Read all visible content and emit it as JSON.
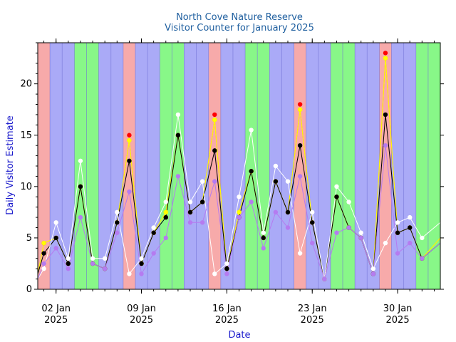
{
  "chart_data": {
    "type": "line",
    "title": "North Cove Nature Reserve",
    "subtitle": "Visitor Counter for January 2025",
    "xlabel": "Date",
    "ylabel": "Daily Visitor Estimate",
    "xlim": [
      "2024-12-31T12:00",
      "2025-02-02T12:00"
    ],
    "ylim": [
      0,
      24
    ],
    "yticks": [
      0,
      5,
      10,
      15,
      20
    ],
    "xticks": [
      {
        "date": "2025-01-02",
        "line1": "02 Jan",
        "line2": "2025"
      },
      {
        "date": "2025-01-09",
        "line1": "09 Jan",
        "line2": "2025"
      },
      {
        "date": "2025-01-16",
        "line1": "16 Jan",
        "line2": "2025"
      },
      {
        "date": "2025-01-23",
        "line1": "23 Jan",
        "line2": "2025"
      },
      {
        "date": "2025-01-30",
        "line1": "30 Jan",
        "line2": "2025"
      }
    ],
    "background_bands": [
      "red",
      "blue",
      "blue",
      "green",
      "green",
      "blue",
      "blue",
      "red",
      "blue",
      "blue",
      "green",
      "green",
      "blue",
      "blue",
      "red",
      "blue",
      "blue",
      "green",
      "green",
      "blue",
      "blue",
      "red",
      "blue",
      "blue",
      "green",
      "green",
      "blue",
      "blue",
      "red",
      "blue",
      "blue",
      "green",
      "green"
    ],
    "band_colors": {
      "red": "#f7aaaa",
      "blue": "#aaaaf7",
      "green": "#88f788"
    },
    "x": [
      "2024-12-31T12:00",
      "2025-01-01",
      "2025-01-02",
      "2025-01-03",
      "2025-01-04",
      "2025-01-05",
      "2025-01-06",
      "2025-01-07",
      "2025-01-08",
      "2025-01-09",
      "2025-01-10",
      "2025-01-11",
      "2025-01-12",
      "2025-01-13",
      "2025-01-14",
      "2025-01-15",
      "2025-01-16",
      "2025-01-17",
      "2025-01-18",
      "2025-01-19",
      "2025-01-20",
      "2025-01-21",
      "2025-01-22",
      "2025-01-23",
      "2025-01-24",
      "2025-01-25",
      "2025-01-26",
      "2025-01-27",
      "2025-01-28",
      "2025-01-29",
      "2025-01-30",
      "2025-01-31",
      "2025-02-01",
      "2025-02-02T12:00"
    ],
    "series": [
      {
        "color": "#ff0000",
        "line": false,
        "values": [
          null,
          4.5,
          5,
          2.5,
          10,
          2.5,
          2,
          6.5,
          15,
          2.5,
          5.5,
          7,
          15,
          7.5,
          8.5,
          17,
          2,
          7,
          11.5,
          5,
          10.5,
          7.5,
          18,
          6.5,
          1,
          9,
          6,
          5,
          1.5,
          23,
          5.5,
          6,
          3,
          null
        ]
      },
      {
        "color": "#ffa500",
        "line": true,
        "values": [
          1.5,
          4.5,
          5,
          2.5,
          10,
          2.5,
          2,
          6.5,
          14.5,
          2.5,
          5.5,
          7.5,
          15,
          7.5,
          8.5,
          16.5,
          2,
          7.5,
          11.5,
          5,
          10.5,
          7.5,
          17.5,
          6.5,
          1,
          9,
          6,
          5,
          1.5,
          22.5,
          5.5,
          6,
          3,
          5
        ]
      },
      {
        "color": "#ffff00",
        "line": true,
        "values": [
          1.5,
          4.5,
          5,
          2.5,
          10,
          2.5,
          2,
          6.5,
          14.5,
          2.5,
          5.5,
          7.5,
          15,
          7.5,
          8.5,
          16.5,
          2,
          7.5,
          11.5,
          5,
          10.5,
          7.5,
          17.5,
          6.5,
          1,
          9,
          6,
          5,
          1.5,
          22.5,
          5.5,
          6,
          3,
          5
        ]
      },
      {
        "color": "#000000",
        "line": true,
        "values": [
          1.5,
          3.5,
          5,
          2.5,
          10,
          2.5,
          2,
          6.5,
          12.5,
          2.5,
          5.5,
          7,
          15,
          7.5,
          8.5,
          13.5,
          2,
          7,
          11.5,
          5,
          10.5,
          7.5,
          14,
          6.5,
          1,
          9,
          6,
          5,
          1.5,
          17,
          5.5,
          6,
          3,
          4.5
        ]
      },
      {
        "color": "#ffffff",
        "line": true,
        "values": [
          1,
          2,
          6.5,
          3,
          12.5,
          3,
          3,
          7.5,
          1.5,
          3,
          6,
          8.5,
          17,
          8.5,
          10.5,
          1.5,
          2.5,
          9,
          15.5,
          5.5,
          12,
          10.5,
          3.5,
          7.5,
          1,
          10,
          8.5,
          5.5,
          2,
          4.5,
          6.5,
          7,
          5,
          6.5
        ]
      },
      {
        "color": "#b57bf0",
        "line": true,
        "values": [
          1,
          2.5,
          4,
          2,
          7,
          2.5,
          2,
          5.5,
          9.5,
          1.5,
          3.5,
          5,
          11,
          6.5,
          6.5,
          10.5,
          1.5,
          7,
          8.5,
          4,
          7.5,
          6,
          11,
          4.5,
          1,
          5.5,
          6,
          5,
          1.5,
          14,
          3.5,
          4.5,
          3,
          4.5
        ]
      }
    ]
  }
}
